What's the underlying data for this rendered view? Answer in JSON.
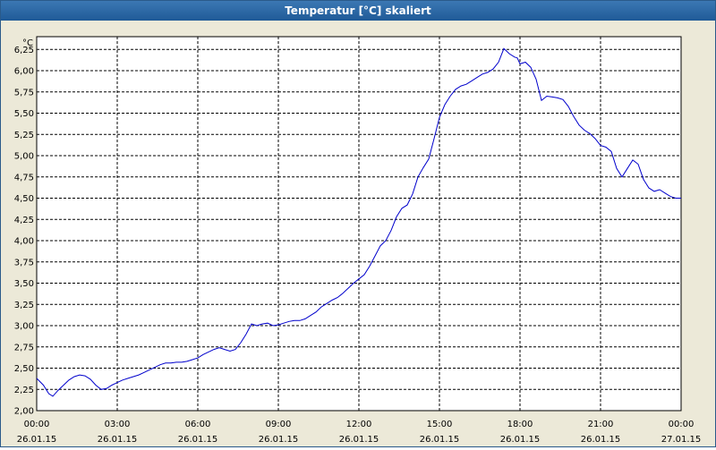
{
  "window": {
    "title": "Temperatur [°C] skaliert"
  },
  "chart_data": {
    "type": "line",
    "title": "Temperatur [°C] skaliert",
    "ylabel": "°C",
    "xlabel": "",
    "ylim": [
      2.0,
      6.4
    ],
    "y_ticks": [
      2.0,
      2.25,
      2.5,
      2.75,
      3.0,
      3.25,
      3.5,
      3.75,
      4.0,
      4.25,
      4.5,
      4.75,
      5.0,
      5.25,
      5.5,
      5.75,
      6.0,
      6.25
    ],
    "y_tick_labels": [
      "2,00",
      "2,25",
      "2,50",
      "2,75",
      "3,00",
      "3,25",
      "3,50",
      "3,75",
      "4,00",
      "4,25",
      "4,50",
      "4,75",
      "5,00",
      "5,25",
      "5,50",
      "5,75",
      "6,00",
      "6,25"
    ],
    "x_range_hours": [
      0,
      24
    ],
    "x_tick_labels": [
      {
        "time": "00:00",
        "date": "26.01.15"
      },
      {
        "time": "03:00",
        "date": "26.01.15"
      },
      {
        "time": "06:00",
        "date": "26.01.15"
      },
      {
        "time": "09:00",
        "date": "26.01.15"
      },
      {
        "time": "12:00",
        "date": "26.01.15"
      },
      {
        "time": "15:00",
        "date": "26.01.15"
      },
      {
        "time": "18:00",
        "date": "26.01.15"
      },
      {
        "time": "21:00",
        "date": "26.01.15"
      },
      {
        "time": "00:00",
        "date": "27.01.15"
      }
    ],
    "grid": true,
    "series": [
      {
        "color": "#0000cc",
        "x": [
          0.0,
          0.25,
          0.45,
          0.6,
          0.8,
          1.0,
          1.2,
          1.4,
          1.6,
          1.8,
          2.0,
          2.2,
          2.4,
          2.6,
          2.8,
          3.0,
          3.2,
          3.4,
          3.6,
          3.8,
          4.0,
          4.2,
          4.4,
          4.6,
          4.8,
          5.0,
          5.2,
          5.4,
          5.6,
          5.8,
          6.0,
          6.2,
          6.4,
          6.6,
          6.8,
          7.0,
          7.2,
          7.4,
          7.6,
          7.8,
          8.0,
          8.2,
          8.4,
          8.6,
          8.8,
          9.0,
          9.2,
          9.4,
          9.6,
          9.8,
          10.0,
          10.2,
          10.4,
          10.6,
          10.8,
          11.0,
          11.2,
          11.4,
          11.6,
          11.8,
          12.0,
          12.2,
          12.4,
          12.6,
          12.8,
          13.0,
          13.2,
          13.4,
          13.6,
          13.8,
          14.0,
          14.2,
          14.4,
          14.6,
          14.8,
          15.0,
          15.2,
          15.4,
          15.6,
          15.8,
          16.0,
          16.2,
          16.4,
          16.6,
          16.8,
          17.0,
          17.2,
          17.4,
          17.6,
          17.8,
          17.9,
          18.0,
          18.2,
          18.4,
          18.6,
          18.8,
          19.0,
          19.2,
          19.4,
          19.6,
          19.8,
          20.0,
          20.2,
          20.4,
          20.6,
          20.8,
          21.0,
          21.2,
          21.4,
          21.6,
          21.8,
          22.0,
          22.2,
          22.4,
          22.6,
          22.8,
          23.0,
          23.2,
          23.4,
          23.6,
          23.8,
          24.0
        ],
        "y": [
          2.38,
          2.3,
          2.2,
          2.17,
          2.24,
          2.3,
          2.36,
          2.4,
          2.42,
          2.41,
          2.37,
          2.3,
          2.25,
          2.26,
          2.3,
          2.33,
          2.36,
          2.38,
          2.4,
          2.42,
          2.45,
          2.48,
          2.51,
          2.54,
          2.56,
          2.56,
          2.57,
          2.57,
          2.58,
          2.6,
          2.62,
          2.66,
          2.69,
          2.72,
          2.74,
          2.72,
          2.7,
          2.72,
          2.8,
          2.9,
          3.02,
          3.0,
          3.02,
          3.03,
          3.0,
          3.01,
          3.03,
          3.05,
          3.06,
          3.06,
          3.08,
          3.12,
          3.16,
          3.22,
          3.26,
          3.3,
          3.33,
          3.38,
          3.44,
          3.5,
          3.55,
          3.6,
          3.7,
          3.82,
          3.94,
          4.0,
          4.12,
          4.28,
          4.38,
          4.42,
          4.55,
          4.75,
          4.86,
          4.96,
          5.2,
          5.45,
          5.6,
          5.7,
          5.78,
          5.82,
          5.84,
          5.88,
          5.92,
          5.96,
          5.98,
          6.02,
          6.1,
          6.26,
          6.2,
          6.16,
          6.15,
          6.08,
          6.1,
          6.04,
          5.9,
          5.65,
          5.7,
          5.69,
          5.68,
          5.66,
          5.58,
          5.46,
          5.36,
          5.3,
          5.26,
          5.2,
          5.12,
          5.1,
          5.05,
          4.85,
          4.75,
          4.85,
          4.95,
          4.9,
          4.72,
          4.62,
          4.58,
          4.6,
          4.56,
          4.52,
          4.5,
          4.5
        ]
      }
    ]
  }
}
